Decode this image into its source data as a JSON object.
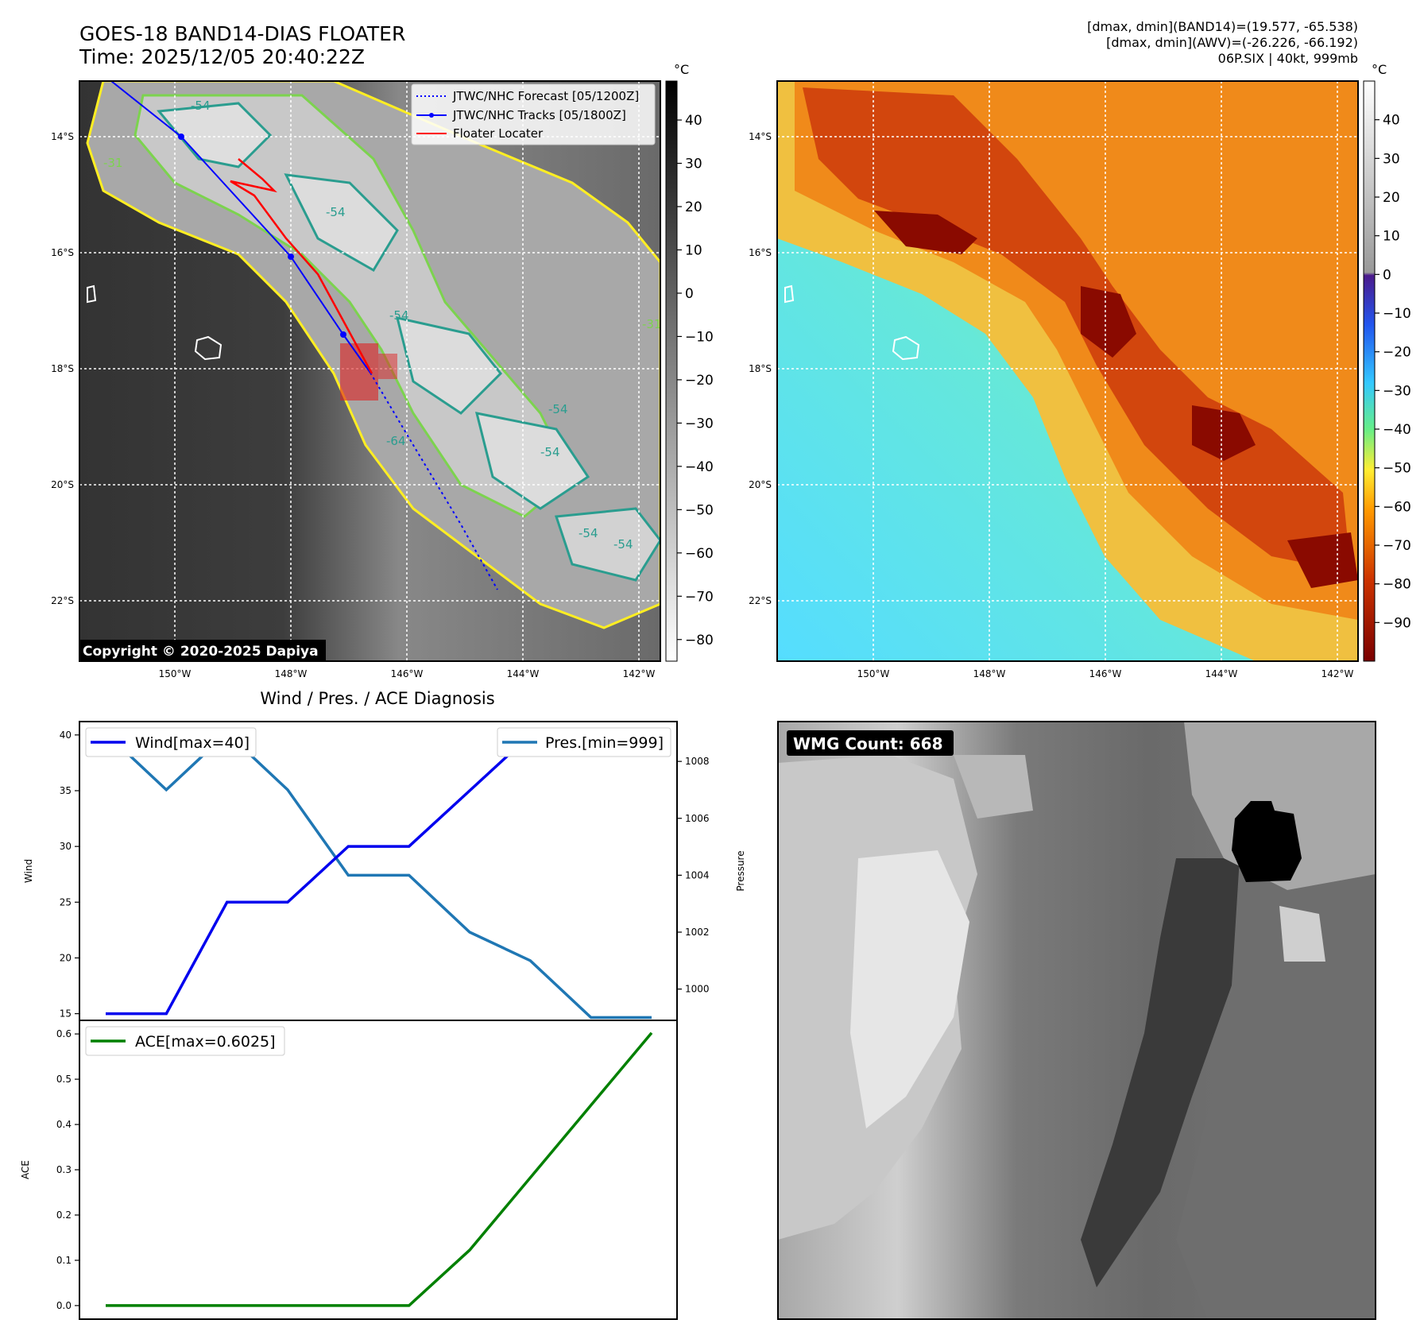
{
  "header": {
    "title_line1": "GOES-18 BAND14-DIAS FLOATER",
    "title_line2": "Time: 2025/12/05 20:40:22Z",
    "stats_line1": "[dmax, dmin](BAND14)=(19.577, -65.538)",
    "stats_line2": "[dmax, dmin](AWV)=(-26.226, -66.192)",
    "stats_line3": "06P.SIX | 40kt, 999mb"
  },
  "map_ir": {
    "lat_labels": [
      "14°S",
      "16°S",
      "18°S",
      "20°S",
      "22°S"
    ],
    "lon_labels": [
      "150°W",
      "148°W",
      "146°W",
      "144°W",
      "142°W"
    ],
    "legend": [
      "JTWC/NHC Forecast [05/1200Z]",
      "JTWC/NHC Tracks [05/1800Z]",
      "Floater Locater"
    ],
    "copyright": "Copyright © 2020-2025 Dapiya",
    "contour_labels": [
      "-54",
      "-31",
      "-54",
      "-54",
      "-31",
      "-64",
      "-54",
      "-54",
      "-54",
      "-54"
    ],
    "colors": {
      "forecast": "#0000ff",
      "track": "#0000ff",
      "locater": "#ff0000",
      "contour_yellow": "#ffee22",
      "contour_green": "#7cd34e",
      "contour_teal": "#2a9d8f"
    }
  },
  "colorbar_ir": {
    "unit": "°C",
    "ticks": [
      "40",
      "30",
      "20",
      "10",
      "0",
      "−10",
      "−20",
      "−30",
      "−40",
      "−50",
      "−60",
      "−70",
      "−80"
    ]
  },
  "colorbar_awv": {
    "unit": "°C",
    "ticks": [
      "40",
      "30",
      "20",
      "10",
      "0",
      "−10",
      "−20",
      "−30",
      "−40",
      "−50",
      "−60",
      "−70",
      "−80",
      "−90"
    ]
  },
  "diagnosis": {
    "title": "Wind / Pres. / ACE Diagnosis",
    "wind_legend": "Wind[max=40]",
    "pres_legend": "Pres.[min=999]",
    "ace_legend": "ACE[max=0.6025]",
    "wind_axis_label": "Wind",
    "pres_axis_label": "Pressure",
    "ace_axis_label": "ACE",
    "wind_ticks": [
      "40",
      "35",
      "30",
      "25",
      "20",
      "15"
    ],
    "pres_ticks": [
      "1008",
      "1006",
      "1004",
      "1002",
      "1000"
    ],
    "ace_ticks": [
      "0.6",
      "0.5",
      "0.4",
      "0.3",
      "0.2",
      "0.1",
      "0.0"
    ],
    "colors": {
      "wind": "#0000ee",
      "pres": "#1f77b4",
      "ace": "#008000"
    }
  },
  "wmg": {
    "label": "WMG Count: 668"
  },
  "chart_data": [
    {
      "type": "line",
      "title": "Wind / Pres. / ACE Diagnosis",
      "x": [
        0,
        1,
        2,
        3,
        4,
        5,
        6,
        7,
        8,
        9
      ],
      "series": [
        {
          "name": "Wind[max=40]",
          "axis": "left",
          "values": [
            15,
            15,
            25,
            25,
            30,
            30,
            35,
            40,
            40,
            40
          ]
        },
        {
          "name": "Pres.[min=999]",
          "axis": "right",
          "values": [
            1009,
            1007,
            1009,
            1007,
            1004,
            1004,
            1002,
            1001,
            999,
            999
          ]
        }
      ],
      "ylabel": "Wind",
      "ylim": [
        14.4,
        41.2
      ],
      "y2label": "Pressure",
      "y2lim": [
        998.9,
        1009.4
      ]
    },
    {
      "type": "line",
      "x": [
        0,
        1,
        2,
        3,
        4,
        5,
        6,
        7,
        8,
        9
      ],
      "series": [
        {
          "name": "ACE[max=0.6025]",
          "values": [
            0,
            0,
            0,
            0,
            0,
            0,
            0.1225,
            0.2825,
            0.4425,
            0.6025
          ]
        }
      ],
      "ylabel": "ACE",
      "ylim": [
        -0.03,
        0.63
      ]
    }
  ]
}
